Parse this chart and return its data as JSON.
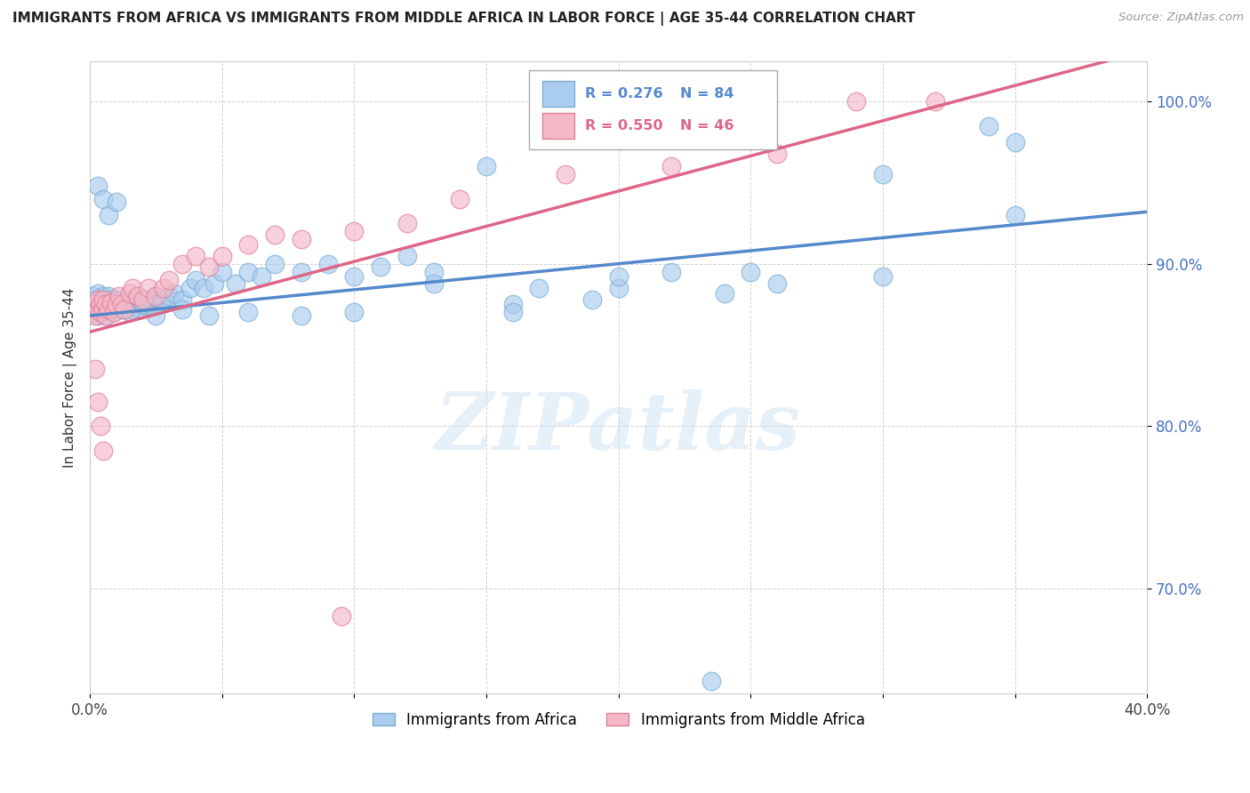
{
  "title": "IMMIGRANTS FROM AFRICA VS IMMIGRANTS FROM MIDDLE AFRICA IN LABOR FORCE | AGE 35-44 CORRELATION CHART",
  "source": "Source: ZipAtlas.com",
  "ylabel": "In Labor Force | Age 35-44",
  "xlim": [
    0.0,
    0.4
  ],
  "ylim": [
    0.635,
    1.025
  ],
  "xtick_pos": [
    0.0,
    0.05,
    0.1,
    0.15,
    0.2,
    0.25,
    0.3,
    0.35,
    0.4
  ],
  "xticklabels": [
    "0.0%",
    "",
    "",
    "",
    "",
    "",
    "",
    "",
    "40.0%"
  ],
  "ytick_positions": [
    0.7,
    0.8,
    0.9,
    1.0
  ],
  "yticklabels": [
    "70.0%",
    "80.0%",
    "90.0%",
    "100.0%"
  ],
  "blue_color": "#aaccee",
  "blue_edge": "#7bafd4",
  "pink_color": "#f4b8c8",
  "pink_edge": "#e08098",
  "trend_blue": "#5588cc",
  "trend_pink": "#dd6688",
  "legend_R_blue": "R = 0.276",
  "legend_N_blue": "N = 84",
  "legend_R_pink": "R = 0.550",
  "legend_N_pink": "N = 46",
  "legend_label_blue": "Immigrants from Africa",
  "legend_label_pink": "Immigrants from Middle Africa",
  "watermark": "ZIPatlas",
  "blue_trend_x0": 0.0,
  "blue_trend_x1": 0.4,
  "blue_trend_y0": 0.868,
  "blue_trend_y1": 0.932,
  "pink_trend_x0": 0.0,
  "pink_trend_x1": 0.385,
  "pink_trend_y0": 0.858,
  "pink_trend_y1": 1.025,
  "blue_x": [
    0.001,
    0.001,
    0.002,
    0.002,
    0.003,
    0.003,
    0.003,
    0.004,
    0.004,
    0.005,
    0.005,
    0.006,
    0.006,
    0.007,
    0.007,
    0.008,
    0.008,
    0.009,
    0.009,
    0.01,
    0.01,
    0.011,
    0.012,
    0.013,
    0.014,
    0.015,
    0.016,
    0.017,
    0.018,
    0.019,
    0.02,
    0.021,
    0.022,
    0.024,
    0.025,
    0.027,
    0.028,
    0.03,
    0.032,
    0.035,
    0.038,
    0.04,
    0.043,
    0.047,
    0.05,
    0.055,
    0.06,
    0.065,
    0.07,
    0.08,
    0.09,
    0.1,
    0.11,
    0.12,
    0.13,
    0.15,
    0.16,
    0.17,
    0.19,
    0.2,
    0.22,
    0.24,
    0.26,
    0.3,
    0.34,
    0.35,
    0.003,
    0.005,
    0.007,
    0.01,
    0.015,
    0.02,
    0.025,
    0.035,
    0.045,
    0.06,
    0.08,
    0.1,
    0.13,
    0.16,
    0.2,
    0.25,
    0.3,
    0.35
  ],
  "blue_y": [
    0.875,
    0.88,
    0.872,
    0.878,
    0.868,
    0.875,
    0.882,
    0.87,
    0.877,
    0.873,
    0.88,
    0.875,
    0.868,
    0.875,
    0.88,
    0.872,
    0.878,
    0.875,
    0.87,
    0.878,
    0.873,
    0.877,
    0.872,
    0.876,
    0.874,
    0.878,
    0.872,
    0.876,
    0.875,
    0.872,
    0.876,
    0.874,
    0.878,
    0.875,
    0.88,
    0.875,
    0.878,
    0.88,
    0.882,
    0.878,
    0.885,
    0.89,
    0.885,
    0.888,
    0.895,
    0.888,
    0.895,
    0.892,
    0.9,
    0.895,
    0.9,
    0.892,
    0.898,
    0.905,
    0.895,
    0.96,
    0.875,
    0.885,
    0.878,
    0.885,
    0.895,
    0.882,
    0.888,
    0.955,
    0.985,
    0.975,
    0.948,
    0.94,
    0.93,
    0.938,
    0.87,
    0.875,
    0.868,
    0.872,
    0.868,
    0.87,
    0.868,
    0.87,
    0.888,
    0.87,
    0.892,
    0.895,
    0.892,
    0.93
  ],
  "pink_x": [
    0.001,
    0.001,
    0.002,
    0.002,
    0.003,
    0.003,
    0.004,
    0.004,
    0.005,
    0.005,
    0.006,
    0.006,
    0.007,
    0.008,
    0.009,
    0.01,
    0.011,
    0.012,
    0.013,
    0.015,
    0.016,
    0.018,
    0.02,
    0.022,
    0.025,
    0.028,
    0.03,
    0.035,
    0.04,
    0.045,
    0.05,
    0.06,
    0.07,
    0.08,
    0.1,
    0.12,
    0.14,
    0.18,
    0.22,
    0.26,
    0.002,
    0.003,
    0.004,
    0.005,
    0.29,
    0.32
  ],
  "pink_y": [
    0.875,
    0.87,
    0.868,
    0.875,
    0.872,
    0.878,
    0.875,
    0.87,
    0.872,
    0.878,
    0.875,
    0.868,
    0.872,
    0.876,
    0.87,
    0.875,
    0.88,
    0.875,
    0.872,
    0.882,
    0.885,
    0.88,
    0.878,
    0.885,
    0.88,
    0.885,
    0.89,
    0.9,
    0.905,
    0.898,
    0.905,
    0.912,
    0.918,
    0.915,
    0.92,
    0.925,
    0.94,
    0.955,
    0.96,
    0.968,
    0.835,
    0.815,
    0.8,
    0.785,
    1.0,
    1.0
  ],
  "extra_pink_low_x": [
    0.095
  ],
  "extra_pink_low_y": [
    0.683
  ],
  "extra_blue_low_x": [
    0.235
  ],
  "extra_blue_low_y": [
    0.643
  ]
}
